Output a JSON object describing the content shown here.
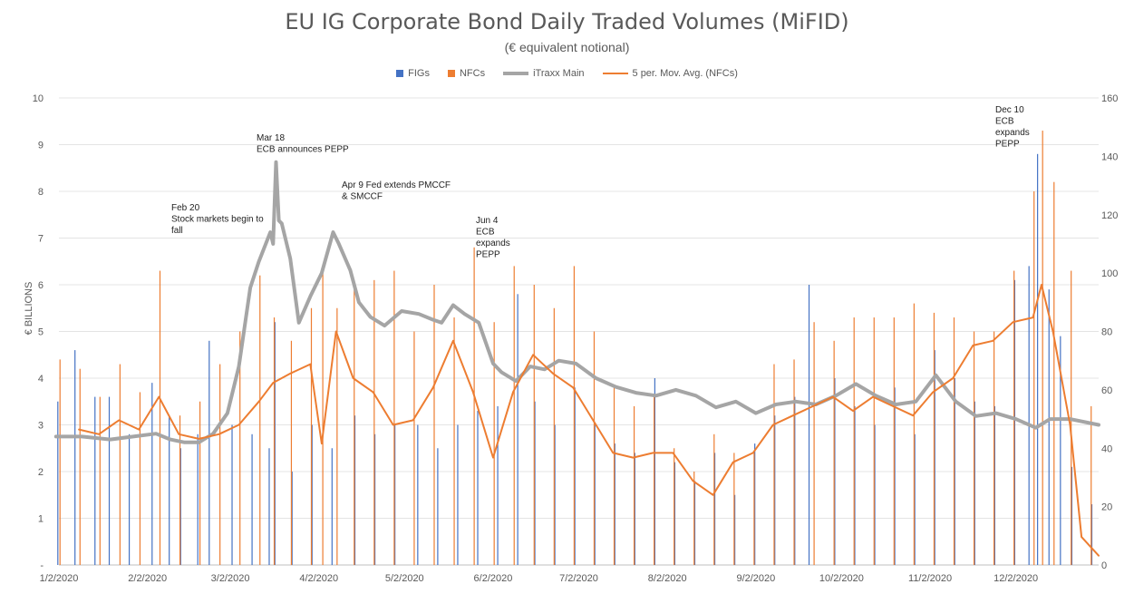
{
  "chart_data": {
    "type": "bar",
    "title": "EU IG Corporate Bond Daily Traded Volumes (MiFID)",
    "subtitle": "(€  equivalent notional)",
    "ylabel": "€ BILLIONS",
    "ylim": [
      0,
      10
    ],
    "y2lim": [
      0,
      160
    ],
    "y_ticks": [
      "-",
      "1",
      "2",
      "3",
      "4",
      "5",
      "6",
      "7",
      "8",
      "9",
      "10"
    ],
    "y2_ticks": [
      "0",
      "20",
      "40",
      "60",
      "80",
      "100",
      "120",
      "140",
      "160"
    ],
    "x_tick_labels": [
      "1/2/2020",
      "2/2/2020",
      "3/2/2020",
      "4/2/2020",
      "5/2/2020",
      "6/2/2020",
      "7/2/2020",
      "8/2/2020",
      "9/2/2020",
      "10/2/2020",
      "11/2/2020",
      "12/2/2020"
    ],
    "grid": true,
    "legend_position": "top",
    "colors": {
      "FIGs": "#4472c4",
      "NFCs": "#ed7d31",
      "iTraxx": "#a5a5a5",
      "ma": "#ed7d31"
    },
    "series": [
      {
        "name": "FIGs",
        "kind": "bar",
        "axis": "left",
        "x": [
          "2020-01-02",
          "2020-01-08",
          "2020-01-15",
          "2020-01-20",
          "2020-01-27",
          "2020-02-04",
          "2020-02-10",
          "2020-02-14",
          "2020-02-20",
          "2020-02-24",
          "2020-03-03",
          "2020-03-10",
          "2020-03-16",
          "2020-03-18",
          "2020-03-24",
          "2020-03-31",
          "2020-04-07",
          "2020-04-15",
          "2020-04-22",
          "2020-04-29",
          "2020-05-07",
          "2020-05-14",
          "2020-05-21",
          "2020-05-28",
          "2020-06-04",
          "2020-06-11",
          "2020-06-17",
          "2020-06-24",
          "2020-07-01",
          "2020-07-08",
          "2020-07-15",
          "2020-07-22",
          "2020-07-29",
          "2020-08-05",
          "2020-08-12",
          "2020-08-19",
          "2020-08-26",
          "2020-09-02",
          "2020-09-09",
          "2020-09-16",
          "2020-09-21",
          "2020-09-30",
          "2020-10-07",
          "2020-10-14",
          "2020-10-21",
          "2020-10-28",
          "2020-11-04",
          "2020-11-11",
          "2020-11-18",
          "2020-11-25",
          "2020-12-02",
          "2020-12-07",
          "2020-12-10",
          "2020-12-14",
          "2020-12-18",
          "2020-12-22",
          "2020-12-29"
        ],
        "values": [
          3.5,
          4.6,
          3.6,
          3.6,
          2.8,
          3.9,
          3.2,
          2.5,
          2.8,
          4.8,
          3.0,
          2.8,
          2.5,
          5.2,
          2.0,
          3.0,
          2.5,
          3.2,
          2.8,
          3.0,
          3.0,
          2.5,
          3.0,
          3.3,
          3.4,
          5.8,
          3.5,
          3.0,
          3.8,
          3.0,
          2.6,
          2.4,
          4.0,
          2.2,
          1.8,
          2.4,
          1.5,
          2.6,
          3.2,
          3.6,
          6.0,
          4.0,
          3.4,
          3.0,
          3.8,
          2.8,
          4.6,
          4.0,
          3.5,
          3.4,
          6.1,
          6.4,
          8.8,
          5.9,
          4.9,
          2.1,
          1.3
        ]
      },
      {
        "name": "NFCs",
        "kind": "bar",
        "axis": "left",
        "x": [
          "2020-01-02",
          "2020-01-09",
          "2020-01-16",
          "2020-01-23",
          "2020-01-30",
          "2020-02-06",
          "2020-02-13",
          "2020-02-20",
          "2020-02-27",
          "2020-03-05",
          "2020-03-12",
          "2020-03-17",
          "2020-03-23",
          "2020-03-30",
          "2020-04-03",
          "2020-04-08",
          "2020-04-14",
          "2020-04-21",
          "2020-04-28",
          "2020-05-05",
          "2020-05-12",
          "2020-05-19",
          "2020-05-26",
          "2020-06-02",
          "2020-06-09",
          "2020-06-16",
          "2020-06-23",
          "2020-06-30",
          "2020-07-07",
          "2020-07-14",
          "2020-07-21",
          "2020-07-28",
          "2020-08-04",
          "2020-08-11",
          "2020-08-18",
          "2020-08-25",
          "2020-09-01",
          "2020-09-08",
          "2020-09-15",
          "2020-09-22",
          "2020-09-29",
          "2020-10-06",
          "2020-10-13",
          "2020-10-20",
          "2020-10-27",
          "2020-11-03",
          "2020-11-10",
          "2020-11-17",
          "2020-11-24",
          "2020-12-01",
          "2020-12-08",
          "2020-12-11",
          "2020-12-15",
          "2020-12-21",
          "2020-12-28"
        ],
        "values": [
          4.4,
          4.2,
          3.6,
          4.3,
          3.7,
          6.3,
          3.2,
          3.5,
          4.3,
          5.0,
          6.2,
          5.3,
          4.8,
          5.5,
          6.3,
          5.5,
          6.0,
          6.1,
          6.3,
          5.0,
          6.0,
          5.3,
          6.8,
          5.2,
          6.4,
          6.0,
          5.5,
          6.4,
          5.0,
          3.8,
          3.4,
          3.6,
          2.5,
          2.0,
          2.8,
          2.4,
          2.4,
          4.3,
          4.4,
          5.2,
          4.8,
          5.3,
          5.3,
          5.3,
          5.6,
          5.4,
          5.3,
          5.0,
          5.0,
          6.3,
          8.0,
          9.3,
          8.2,
          6.3,
          3.4
        ]
      },
      {
        "name": "iTraxx Main",
        "kind": "line",
        "axis": "right",
        "x": [
          "2020-01-01",
          "2020-01-10",
          "2020-01-20",
          "2020-01-28",
          "2020-02-05",
          "2020-02-10",
          "2020-02-15",
          "2020-02-20",
          "2020-02-25",
          "2020-03-01",
          "2020-03-05",
          "2020-03-09",
          "2020-03-12",
          "2020-03-16",
          "2020-03-17",
          "2020-03-18",
          "2020-03-19",
          "2020-03-20",
          "2020-03-23",
          "2020-03-26",
          "2020-03-30",
          "2020-04-03",
          "2020-04-07",
          "2020-04-09",
          "2020-04-13",
          "2020-04-16",
          "2020-04-20",
          "2020-04-25",
          "2020-05-01",
          "2020-05-07",
          "2020-05-12",
          "2020-05-15",
          "2020-05-19",
          "2020-05-23",
          "2020-05-28",
          "2020-06-02",
          "2020-06-05",
          "2020-06-10",
          "2020-06-15",
          "2020-06-20",
          "2020-06-25",
          "2020-07-01",
          "2020-07-08",
          "2020-07-15",
          "2020-07-22",
          "2020-07-29",
          "2020-08-05",
          "2020-08-12",
          "2020-08-19",
          "2020-08-26",
          "2020-09-02",
          "2020-09-09",
          "2020-09-16",
          "2020-09-23",
          "2020-09-30",
          "2020-10-07",
          "2020-10-14",
          "2020-10-21",
          "2020-10-28",
          "2020-11-04",
          "2020-11-11",
          "2020-11-18",
          "2020-11-25",
          "2020-12-02",
          "2020-12-09",
          "2020-12-14",
          "2020-12-21",
          "2020-12-31"
        ],
        "values": [
          44,
          44,
          43,
          44,
          45,
          43,
          42,
          42,
          45,
          52,
          68,
          95,
          104,
          114,
          110,
          138,
          118,
          117,
          105,
          83,
          92,
          100,
          114,
          110,
          101,
          90,
          85,
          82,
          87,
          86,
          84,
          83,
          89,
          86,
          83,
          69,
          66,
          63,
          68,
          67,
          70,
          69,
          64,
          61,
          59,
          58,
          60,
          58,
          54,
          56,
          52,
          55,
          56,
          55,
          58,
          62,
          58,
          55,
          56,
          65,
          56,
          51,
          52,
          50,
          47,
          50,
          50,
          48
        ]
      },
      {
        "name": "5 per. Mov. Avg. (NFCs)",
        "kind": "line",
        "axis": "left",
        "x": [
          "2020-01-09",
          "2020-01-16",
          "2020-01-23",
          "2020-01-30",
          "2020-02-06",
          "2020-02-13",
          "2020-02-20",
          "2020-02-27",
          "2020-03-05",
          "2020-03-12",
          "2020-03-17",
          "2020-03-23",
          "2020-03-30",
          "2020-04-03",
          "2020-04-08",
          "2020-04-14",
          "2020-04-21",
          "2020-04-28",
          "2020-05-05",
          "2020-05-12",
          "2020-05-19",
          "2020-05-26",
          "2020-06-02",
          "2020-06-09",
          "2020-06-16",
          "2020-06-23",
          "2020-06-30",
          "2020-07-07",
          "2020-07-14",
          "2020-07-21",
          "2020-07-28",
          "2020-08-04",
          "2020-08-11",
          "2020-08-18",
          "2020-08-25",
          "2020-09-01",
          "2020-09-08",
          "2020-09-15",
          "2020-09-22",
          "2020-09-29",
          "2020-10-06",
          "2020-10-13",
          "2020-10-20",
          "2020-10-27",
          "2020-11-03",
          "2020-11-10",
          "2020-11-17",
          "2020-11-24",
          "2020-12-01",
          "2020-12-08",
          "2020-12-11",
          "2020-12-15",
          "2020-12-21",
          "2020-12-25",
          "2020-12-31"
        ],
        "values": [
          2.9,
          2.8,
          3.1,
          2.9,
          3.6,
          2.8,
          2.7,
          2.8,
          3.0,
          3.5,
          3.9,
          4.1,
          4.3,
          2.6,
          5.0,
          4.0,
          3.7,
          3.0,
          3.1,
          3.8,
          4.8,
          3.7,
          2.3,
          3.7,
          4.5,
          4.1,
          3.8,
          3.1,
          2.4,
          2.3,
          2.4,
          2.4,
          1.8,
          1.5,
          2.2,
          2.4,
          3.0,
          3.2,
          3.4,
          3.6,
          3.3,
          3.6,
          3.4,
          3.2,
          3.7,
          4.0,
          4.7,
          4.8,
          5.2,
          5.3,
          6.0,
          5.0,
          3.0,
          0.6,
          0.2
        ]
      }
    ],
    "annotations": [
      {
        "date": "2020-02-20",
        "lines": [
          "Feb 20",
          "Stock markets begin to",
          "fall"
        ]
      },
      {
        "date": "2020-03-18",
        "lines": [
          "Mar 18",
          "ECB announces PEPP"
        ]
      },
      {
        "date": "2020-04-09",
        "lines": [
          "Apr 9 Fed extends PMCCF",
          "& SMCCF"
        ]
      },
      {
        "date": "2020-06-04",
        "lines": [
          "Jun 4",
          "ECB",
          "expands",
          "PEPP"
        ]
      },
      {
        "date": "2020-12-10",
        "lines": [
          "Dec 10",
          "ECB",
          "expands",
          "PEPP"
        ]
      }
    ]
  }
}
